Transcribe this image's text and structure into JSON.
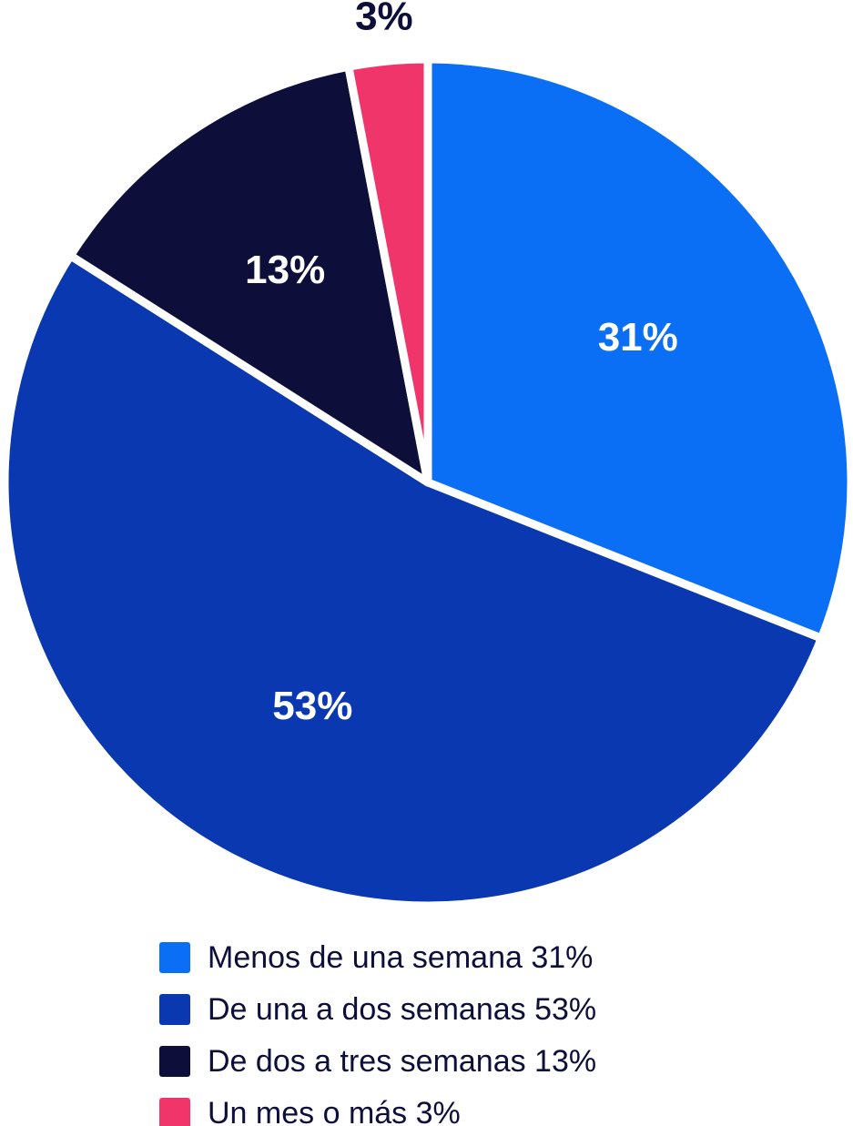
{
  "chart_data": {
    "type": "pie",
    "categories": [
      "Menos de una semana 31%",
      "De una a dos semanas 53%",
      "De dos a tres semanas 13%",
      "Un mes o más 3%"
    ],
    "values": [
      31,
      53,
      13,
      3
    ],
    "value_labels": [
      "31%",
      "53%",
      "13%",
      "3%"
    ],
    "colors": [
      "#0a6ff5",
      "#0a38b0",
      "#0d0f3a",
      "#f0356b"
    ]
  }
}
